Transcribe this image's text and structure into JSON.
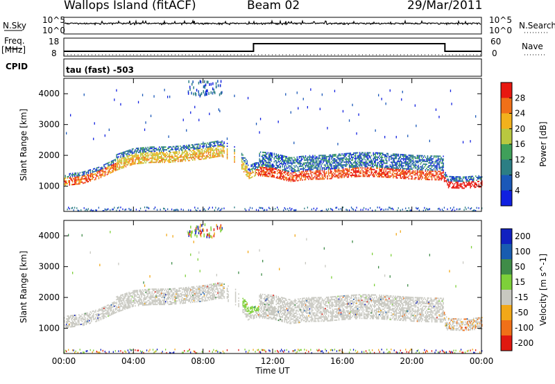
{
  "header": {
    "station": "Wallops Island (fitACF)",
    "beam": "Beam 02",
    "date": "29/Mar/2011"
  },
  "top_panels": {
    "nsky_label": "N.Sky",
    "nsearch_label": "N.Search",
    "nsky_ticks": [
      "10^5",
      "10^0"
    ],
    "nsearch_ticks": [
      "10^5",
      "10^0"
    ],
    "freq_label": "Freq.",
    "freq_unit": "[MHz]",
    "freq_ticks": [
      "18",
      "8"
    ],
    "nave_label": "Nave",
    "nave_ticks": [
      "60",
      "0"
    ],
    "cpid_label": "CPID",
    "cpid_value": "tau (fast) -503"
  },
  "chart_data": [
    {
      "type": "heatmap",
      "panel": "power",
      "ylabel": "Slant Range [km]",
      "x_ticks": [
        "00:00",
        "04:00",
        "08:00",
        "12:00",
        "16:00",
        "20:00",
        "00:00"
      ],
      "x_range_hours": [
        0,
        24
      ],
      "y_ticks": [
        1000,
        2000,
        3000,
        4000
      ],
      "y_range_km": [
        180,
        4500
      ],
      "colorbar_label": "Power [dB]",
      "colorbar_ticks": [
        28,
        24,
        20,
        16,
        12,
        8,
        4
      ],
      "colorbar_range": [
        0,
        32
      ],
      "colors": [
        "#1020e0",
        "#1a58b8",
        "#2c7e84",
        "#3fa05a",
        "#b9c840",
        "#f2b11c",
        "#f07018",
        "#e81810"
      ],
      "band_lower_edge_km": [
        [
          0,
          1120
        ],
        [
          1,
          1180
        ],
        [
          2,
          1350
        ],
        [
          3,
          1620
        ],
        [
          4,
          1820
        ],
        [
          5,
          1870
        ],
        [
          6,
          1870
        ],
        [
          7,
          1920
        ],
        [
          8,
          1980
        ],
        [
          9,
          2080
        ],
        [
          10,
          1820
        ],
        [
          10.6,
          1340
        ],
        [
          11,
          1450
        ],
        [
          12,
          1400
        ],
        [
          13,
          1250
        ],
        [
          14,
          1320
        ],
        [
          15,
          1330
        ],
        [
          16,
          1380
        ],
        [
          17,
          1420
        ],
        [
          18,
          1410
        ],
        [
          19,
          1370
        ],
        [
          20,
          1330
        ],
        [
          21,
          1310
        ],
        [
          21.8,
          1300
        ],
        [
          22,
          1050
        ],
        [
          23,
          1030
        ],
        [
          24,
          1080
        ]
      ]
    },
    {
      "type": "heatmap",
      "panel": "velocity",
      "ylabel": "Slant Range [km]",
      "xlabel": "Time UT",
      "x_ticks": [
        "00:00",
        "04:00",
        "08:00",
        "12:00",
        "16:00",
        "20:00",
        "00:00"
      ],
      "x_range_hours": [
        0,
        24
      ],
      "y_ticks": [
        1000,
        2000,
        3000,
        4000
      ],
      "y_range_km": [
        180,
        4500
      ],
      "colorbar_label": "Velocity [m s^-1]",
      "colorbar_ticks": [
        "200",
        "100",
        "50",
        "15",
        "-15",
        "-50",
        "-100",
        "-200"
      ],
      "colors": [
        "#1020c0",
        "#185cb0",
        "#3f8c48",
        "#7ed03a",
        "#c8c8c0",
        "#f2a818",
        "#f07018",
        "#e01810"
      ]
    }
  ]
}
